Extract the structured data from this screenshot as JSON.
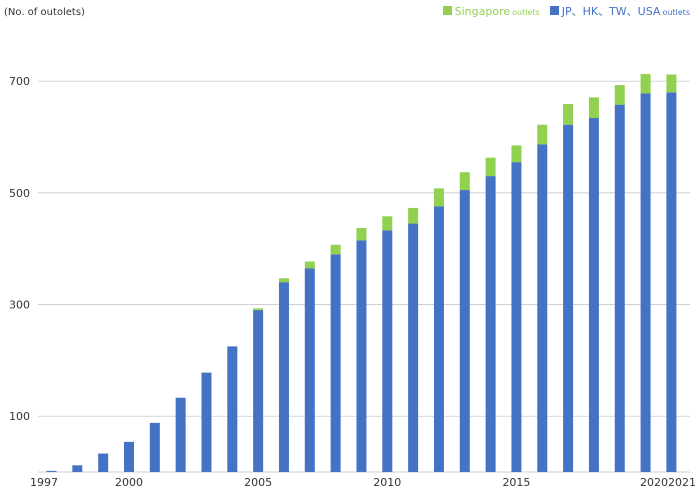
{
  "colors": {
    "jp_series": "#4472c4",
    "singapore_series": "#92d050",
    "axis_text": "#333333",
    "grid": "#bfbfbf"
  },
  "legend": {
    "singapore": {
      "label": "Singapore",
      "suffix": "outlets"
    },
    "jp": {
      "label": "JP、HK、TW、USA",
      "suffix": "outlets"
    }
  },
  "chart_data": {
    "type": "bar",
    "stacked": true,
    "ylabel": "(No. of outolets)",
    "ylim": [
      0,
      730
    ],
    "yticks": [
      100,
      300,
      500,
      700
    ],
    "x": [
      1997,
      1998,
      1999,
      2000,
      2001,
      2002,
      2003,
      2004,
      2005,
      2006,
      2007,
      2008,
      2009,
      2010,
      2011,
      2012,
      2013,
      2014,
      2015,
      2016,
      2017,
      2018,
      2019,
      2020,
      2021
    ],
    "xtick_labels": [
      "1997",
      "2000",
      "2005",
      "2010",
      "2015",
      "2020",
      "2021"
    ],
    "grid": "horizontal",
    "legend_position": "top-right",
    "series": [
      {
        "name": "JP、HK、TW、USA outlets",
        "values": [
          2,
          12,
          33,
          54,
          88,
          133,
          178,
          225,
          290,
          340,
          365,
          390,
          415,
          433,
          445,
          476,
          505,
          530,
          555,
          587,
          622,
          634,
          658,
          678,
          680
        ]
      },
      {
        "name": "Singapore outlets",
        "values": [
          0,
          0,
          0,
          0,
          0,
          0,
          0,
          0,
          3,
          7,
          12,
          17,
          22,
          25,
          28,
          32,
          32,
          33,
          30,
          35,
          37,
          37,
          35,
          35,
          32
        ]
      }
    ]
  }
}
